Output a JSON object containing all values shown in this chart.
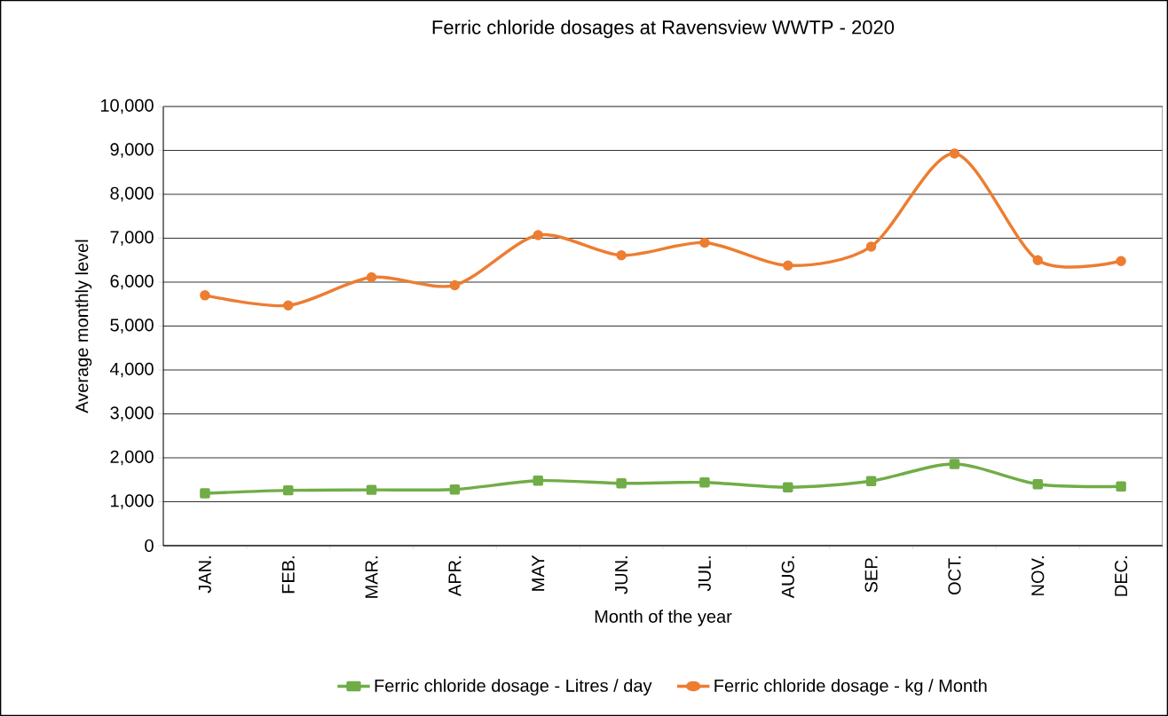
{
  "chart_data": {
    "type": "line",
    "title": "Ferric chloride dosages at Ravensview WWTP - 2020",
    "xlabel": "Month of the year",
    "ylabel": "Average monthly level",
    "categories": [
      "JAN.",
      "FEB.",
      "MAR.",
      "APR.",
      "MAY",
      "JUN.",
      "JUL.",
      "AUG.",
      "SEP.",
      "OCT.",
      "NOV.",
      "DEC."
    ],
    "series": [
      {
        "name": "Ferric chloride dosage - Litres / day",
        "color": "#70ad47",
        "marker": "square",
        "values": [
          1190,
          1260,
          1270,
          1280,
          1480,
          1420,
          1440,
          1330,
          1470,
          1860,
          1400,
          1350
        ]
      },
      {
        "name": "Ferric chloride dosage - kg / Month",
        "color": "#ed7d31",
        "marker": "circle",
        "values": [
          5700,
          5470,
          6110,
          5930,
          7070,
          6610,
          6900,
          6380,
          6810,
          8930,
          6500,
          6480
        ]
      }
    ],
    "ylim": [
      0,
      10000
    ],
    "yticks": [
      {
        "value": 0,
        "label": "0"
      },
      {
        "value": 1000,
        "label": "1,000"
      },
      {
        "value": 2000,
        "label": "2,000"
      },
      {
        "value": 3000,
        "label": "3,000"
      },
      {
        "value": 4000,
        "label": "4,000"
      },
      {
        "value": 5000,
        "label": "5,000"
      },
      {
        "value": 6000,
        "label": "6,000"
      },
      {
        "value": 7000,
        "label": "7,000"
      },
      {
        "value": 8000,
        "label": "8,000"
      },
      {
        "value": 9000,
        "label": "9,000"
      },
      {
        "value": 10000,
        "label": "10,000"
      }
    ],
    "grid": "y",
    "legend": "bottom",
    "line_style": "solid"
  }
}
